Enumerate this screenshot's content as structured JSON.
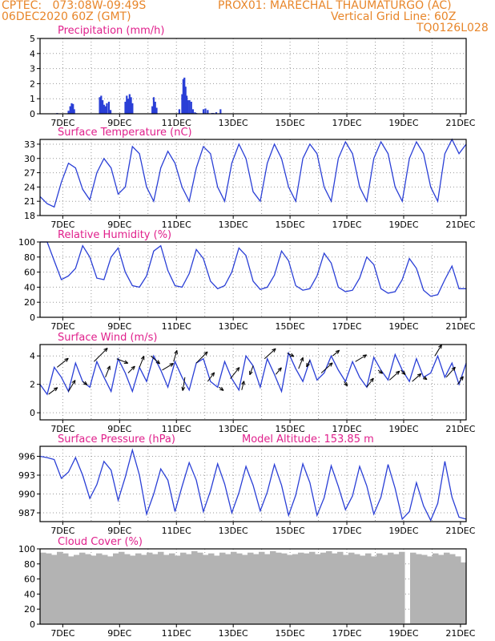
{
  "header": {
    "line1_left": "CPTEC:   073:08W-09:49S",
    "line1_right": "PROX01: MARECHAL THAUMATURGO (AC)",
    "line2_left": "06DEC2020 60Z (GMT)",
    "line2_right": "Vertical Grid Line: 60Z",
    "line3_right": "TQ0126L028"
  },
  "colors": {
    "header": "#e8862a",
    "title": "#e0208c",
    "line": "#2a3fd6",
    "cloud": "#b3b3b3"
  },
  "x_ticks": [
    "7DEC",
    "9DEC",
    "11DEC",
    "13DEC",
    "15DEC",
    "17DEC",
    "19DEC",
    "21DEC"
  ],
  "chart_data": [
    {
      "type": "bar",
      "title": "Precipitation (mm/h)",
      "ylim": [
        0,
        5
      ],
      "yticks": [
        "0",
        "1",
        "2",
        "3",
        "4",
        "5"
      ],
      "x": [
        0.6,
        1.0,
        1.06,
        1.11,
        1.16,
        1.2,
        2.1,
        2.15,
        2.2,
        2.25,
        2.3,
        2.35,
        2.42,
        2.48,
        3.0,
        3.05,
        3.1,
        3.15,
        3.2,
        3.25,
        3.95,
        4.0,
        4.05,
        4.1,
        4.9,
        5.0,
        5.04,
        5.08,
        5.12,
        5.16,
        5.2,
        5.26,
        5.32,
        5.38,
        5.45,
        5.5,
        5.75,
        5.82,
        5.9,
        6.05,
        6.1,
        6.2,
        6.35
      ],
      "values": [
        0.05,
        0.2,
        0.5,
        0.7,
        0.65,
        0.3,
        1.1,
        1.2,
        0.9,
        0.6,
        0.5,
        0.7,
        0.8,
        0.25,
        0.8,
        1.2,
        1.0,
        1.3,
        1.1,
        0.7,
        0.5,
        1.1,
        0.8,
        0.4,
        0.3,
        1.3,
        2.3,
        2.4,
        1.8,
        1.2,
        0.9,
        0.9,
        0.8,
        0.3,
        0.1,
        0.05,
        0.3,
        0.35,
        0.25,
        0.05,
        0.05,
        0.1,
        0.3
      ]
    },
    {
      "type": "line",
      "title": "Surface Temperature (nC)",
      "ylim": [
        18,
        34
      ],
      "yticks": [
        "18",
        "21",
        "24",
        "27",
        "30",
        "33"
      ],
      "x": [
        0.0,
        0.25,
        0.5,
        0.75,
        1.0,
        1.25,
        1.5,
        1.75,
        2.0,
        2.25,
        2.5,
        2.75,
        3.0,
        3.25,
        3.5,
        3.75,
        4.0,
        4.25,
        4.5,
        4.75,
        5.0,
        5.25,
        5.5,
        5.75,
        6.0,
        6.25,
        6.5,
        6.75,
        7.0,
        7.25,
        7.5,
        7.75,
        8.0,
        8.25,
        8.5,
        8.75,
        9.0,
        9.25,
        9.5,
        9.75,
        10.0,
        10.25,
        10.5,
        10.75,
        11.0,
        11.25,
        11.5,
        11.75,
        12.0,
        12.25,
        12.5,
        12.75,
        13.0,
        13.25,
        13.5,
        13.75,
        14.0,
        14.25,
        14.5,
        14.75,
        15.0
      ],
      "values": [
        22,
        20.5,
        19.8,
        25,
        29,
        28,
        23.5,
        21.3,
        27,
        30,
        28,
        22.5,
        24,
        32.5,
        31,
        24,
        21,
        28,
        31.5,
        29,
        24,
        21,
        28,
        32.5,
        31,
        24,
        21,
        29,
        33,
        30,
        23,
        21,
        29,
        33,
        30,
        24,
        21,
        30,
        33,
        31,
        24,
        21,
        30,
        33.5,
        31,
        24,
        21,
        30,
        33.5,
        31,
        24,
        21,
        30,
        33.5,
        31,
        24,
        21,
        31,
        34,
        31,
        33
      ]
    },
    {
      "type": "line",
      "title": "Relative Humidity (%)",
      "ylim": [
        0,
        100
      ],
      "yticks": [
        "0",
        "20",
        "40",
        "60",
        "80",
        "100"
      ],
      "x": [
        0.0,
        0.25,
        0.5,
        0.75,
        1.0,
        1.25,
        1.5,
        1.75,
        2.0,
        2.25,
        2.5,
        2.75,
        3.0,
        3.25,
        3.5,
        3.75,
        4.0,
        4.25,
        4.5,
        4.75,
        5.0,
        5.25,
        5.5,
        5.75,
        6.0,
        6.25,
        6.5,
        6.75,
        7.0,
        7.25,
        7.5,
        7.75,
        8.0,
        8.25,
        8.5,
        8.75,
        9.0,
        9.25,
        9.5,
        9.75,
        10.0,
        10.25,
        10.5,
        10.75,
        11.0,
        11.25,
        11.5,
        11.75,
        12.0,
        12.25,
        12.5,
        12.75,
        13.0,
        13.25,
        13.5,
        13.75,
        14.0,
        14.25,
        14.5,
        14.75,
        15.0
      ],
      "values": [
        100,
        100,
        75,
        50,
        55,
        65,
        95,
        80,
        52,
        50,
        80,
        92,
        60,
        42,
        40,
        55,
        88,
        95,
        62,
        42,
        40,
        58,
        90,
        78,
        48,
        38,
        42,
        60,
        92,
        82,
        48,
        37,
        40,
        56,
        88,
        75,
        42,
        36,
        38,
        55,
        85,
        72,
        40,
        34,
        36,
        52,
        80,
        70,
        38,
        32,
        34,
        50,
        78,
        65,
        36,
        28,
        30,
        50,
        68,
        38,
        38
      ]
    },
    {
      "type": "line",
      "title": "Surface Wind (m/s)",
      "ylim": [
        -0.5,
        4.8
      ],
      "yticks": [
        "0",
        "2",
        "4"
      ],
      "x": [
        0.0,
        0.25,
        0.5,
        0.75,
        1.0,
        1.25,
        1.5,
        1.75,
        2.0,
        2.25,
        2.5,
        2.75,
        3.0,
        3.25,
        3.5,
        3.75,
        4.0,
        4.25,
        4.5,
        4.75,
        5.0,
        5.25,
        5.5,
        5.75,
        6.0,
        6.25,
        6.5,
        6.75,
        7.0,
        7.25,
        7.5,
        7.75,
        8.0,
        8.25,
        8.5,
        8.75,
        9.0,
        9.25,
        9.5,
        9.75,
        10.0,
        10.25,
        10.5,
        10.75,
        11.0,
        11.25,
        11.5,
        11.75,
        12.0,
        12.25,
        12.5,
        12.75,
        13.0,
        13.25,
        13.5,
        13.75,
        14.0,
        14.25,
        14.5,
        14.75,
        15.0
      ],
      "values": [
        2,
        1.3,
        3.2,
        2.5,
        1.5,
        3.5,
        2.2,
        1.8,
        3.6,
        2.5,
        1.5,
        3.8,
        2.8,
        1.5,
        3.2,
        2.2,
        4.0,
        3.0,
        1.8,
        3.6,
        2.5,
        1.6,
        3.5,
        3.8,
        2.2,
        1.8,
        3.6,
        2.4,
        1.6,
        4.0,
        3.3,
        1.8,
        3.8,
        2.7,
        1.5,
        4.2,
        3.1,
        2.2,
        3.7,
        2.3,
        2.8,
        4.0,
        3.0,
        2.2,
        3.6,
        2.5,
        1.8,
        3.9,
        3.0,
        2.3,
        4.1,
        3.0,
        2.2,
        3.8,
        2.5,
        2.8,
        4.0,
        2.5,
        3.5,
        2.0,
        3.5
      ],
      "arrows": {
        "x": [
          0.3,
          0.6,
          1.0,
          1.5,
          1.9,
          2.3,
          2.7,
          3.1,
          3.5,
          3.9,
          4.3,
          4.7,
          5.1,
          5.5,
          5.9,
          6.3,
          6.7,
          7.1,
          7.5,
          7.9,
          8.3,
          8.7,
          9.1,
          9.5,
          9.9,
          10.3,
          10.7,
          11.1,
          11.5,
          11.9,
          12.3,
          12.7,
          13.1,
          13.5,
          13.9,
          14.3,
          14.7
        ],
        "u": [
          0.8,
          1.0,
          0.6,
          0.4,
          1.2,
          0.4,
          1.0,
          0.6,
          0.4,
          0.8,
          1.0,
          0.3,
          -0.2,
          1.0,
          0.6,
          0.4,
          0.8,
          0.2,
          -0.3,
          1.0,
          0.5,
          0.6,
          0.4,
          -0.3,
          1.0,
          0.6,
          0.3,
          1.0,
          0.6,
          0.4,
          0.9,
          0.4,
          0.8,
          0.3,
          0.6,
          0.8,
          0.5
        ],
        "v": [
          0.6,
          0.8,
          1.0,
          -0.3,
          1.2,
          1.0,
          -0.4,
          0.6,
          1.0,
          -0.7,
          0.6,
          1.0,
          -1.2,
          1.0,
          0.8,
          -0.3,
          1.0,
          0.8,
          -0.8,
          0.9,
          0.6,
          -0.3,
          1.0,
          -0.6,
          0.9,
          0.5,
          -0.4,
          0.6,
          0.8,
          -0.3,
          0.8,
          -0.4,
          0.7,
          -0.2,
          1.0,
          0.9,
          0.7
        ]
      }
    },
    {
      "type": "line",
      "title": "Surface Pressure (hPa)",
      "annotation": "Model Altitude: 153.85 m",
      "ylim": [
        985.6,
        997.6
      ],
      "yticks": [
        "987",
        "990",
        "993",
        "996"
      ],
      "x": [
        0.0,
        0.25,
        0.5,
        0.75,
        1.0,
        1.25,
        1.5,
        1.75,
        2.0,
        2.25,
        2.5,
        2.75,
        3.0,
        3.25,
        3.5,
        3.75,
        4.0,
        4.25,
        4.5,
        4.75,
        5.0,
        5.25,
        5.5,
        5.75,
        6.0,
        6.25,
        6.5,
        6.75,
        7.0,
        7.25,
        7.5,
        7.75,
        8.0,
        8.25,
        8.5,
        8.75,
        9.0,
        9.25,
        9.5,
        9.75,
        10.0,
        10.25,
        10.5,
        10.75,
        11.0,
        11.25,
        11.5,
        11.75,
        12.0,
        12.25,
        12.5,
        12.75,
        13.0,
        13.25,
        13.5,
        13.75,
        14.0,
        14.25,
        14.5,
        14.75,
        15.0
      ],
      "values": [
        996,
        995.8,
        995.5,
        992.5,
        993.5,
        995.8,
        993,
        989.3,
        991.5,
        995.2,
        993.8,
        989,
        992.7,
        997,
        993,
        986.8,
        990,
        994,
        992.2,
        987.2,
        991.2,
        995,
        992.2,
        987.2,
        990.5,
        994.8,
        991.6,
        987,
        990.2,
        994.4,
        991.4,
        987.3,
        990.3,
        994.7,
        991.4,
        986.6,
        989.8,
        994.8,
        991.8,
        986.6,
        989.4,
        994.5,
        991.2,
        987.5,
        989.7,
        994.4,
        991.3,
        986.8,
        989.5,
        994.7,
        990.9,
        986,
        987.2,
        991.8,
        988.1,
        985.8,
        988.5,
        995.2,
        989.5,
        986.3,
        986
      ]
    },
    {
      "type": "bar",
      "title": "Cloud Cover (%)",
      "ylim": [
        0,
        100
      ],
      "yticks": [
        "0",
        "20",
        "40",
        "60",
        "80",
        "100"
      ],
      "x": [
        0.0,
        0.2,
        0.4,
        0.6,
        0.8,
        1.0,
        1.2,
        1.4,
        1.6,
        1.8,
        2.0,
        2.2,
        2.4,
        2.6,
        2.8,
        3.0,
        3.2,
        3.4,
        3.6,
        3.8,
        4.0,
        4.2,
        4.4,
        4.6,
        4.8,
        5.0,
        5.2,
        5.4,
        5.6,
        5.8,
        6.0,
        6.2,
        6.4,
        6.6,
        6.8,
        7.0,
        7.2,
        7.4,
        7.6,
        7.8,
        8.0,
        8.2,
        8.4,
        8.6,
        8.8,
        9.0,
        9.2,
        9.4,
        9.6,
        9.8,
        10.0,
        10.2,
        10.4,
        10.6,
        10.8,
        11.0,
        11.2,
        11.4,
        11.6,
        11.8,
        12.0,
        12.2,
        12.4,
        12.6,
        12.8,
        13.0,
        13.2,
        13.4,
        13.6,
        13.8,
        14.0,
        14.2,
        14.4,
        14.6,
        14.8,
        15.0
      ],
      "values": [
        95,
        94,
        92,
        96,
        94,
        90,
        92,
        95,
        93,
        91,
        94,
        92,
        90,
        94,
        96,
        93,
        91,
        94,
        92,
        95,
        93,
        96,
        92,
        94,
        91,
        95,
        93,
        97,
        95,
        92,
        94,
        91,
        95,
        93,
        96,
        94,
        92,
        95,
        93,
        96,
        93,
        97,
        95,
        94,
        92,
        93,
        95,
        94,
        96,
        93,
        95,
        97,
        94,
        96,
        92,
        95,
        93,
        91,
        94,
        90,
        94,
        92,
        95,
        93,
        96,
        1,
        95,
        93,
        92,
        90,
        94,
        92,
        95,
        93,
        90,
        82
      ]
    }
  ]
}
